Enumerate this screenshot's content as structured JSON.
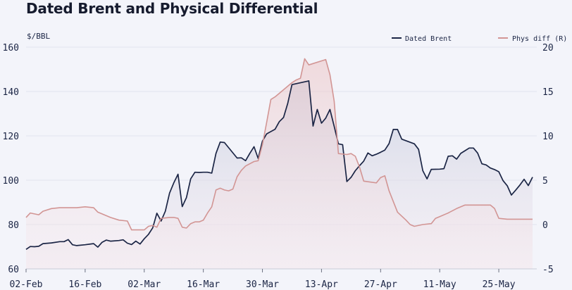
{
  "chart_data": {
    "type": "line",
    "title": "Dated Brent and Physical Differential",
    "y_left_unit": "$/BBL",
    "y_right_unit": "",
    "ylim_left": [
      60,
      160
    ],
    "ylim_right": [
      -5,
      20
    ],
    "yticks_left": [
      "60",
      "80",
      "100",
      "120",
      "140",
      "160"
    ],
    "yticks_right": [
      "-5",
      "0",
      "5",
      "10",
      "15",
      "20"
    ],
    "x_range": [
      "2022-02-02",
      "2022-06-03"
    ],
    "xticks": [
      {
        "date": "2022-02-02",
        "label": "02-Feb"
      },
      {
        "date": "2022-02-16",
        "label": "16-Feb"
      },
      {
        "date": "2022-03-02",
        "label": "02-Mar"
      },
      {
        "date": "2022-03-16",
        "label": "16-Mar"
      },
      {
        "date": "2022-03-30",
        "label": "30-Mar"
      },
      {
        "date": "2022-04-13",
        "label": "13-Apr"
      },
      {
        "date": "2022-04-27",
        "label": "27-Apr"
      },
      {
        "date": "2022-05-11",
        "label": "11-May"
      },
      {
        "date": "2022-05-25",
        "label": "25-May"
      }
    ],
    "grid": true,
    "legend_position": "top-right",
    "series": [
      {
        "name": "Dated Brent",
        "axis": "left",
        "color": "#1b2545",
        "points": [
          [
            "2022-02-02",
            68.8
          ],
          [
            "2022-02-03",
            70.1
          ],
          [
            "2022-02-04",
            70.0
          ],
          [
            "2022-02-05",
            70.2
          ],
          [
            "2022-02-06",
            71.4
          ],
          [
            "2022-02-08",
            71.7
          ],
          [
            "2022-02-10",
            72.3
          ],
          [
            "2022-02-11",
            72.3
          ],
          [
            "2022-02-12",
            73.2
          ],
          [
            "2022-02-13",
            70.9
          ],
          [
            "2022-02-14",
            70.5
          ],
          [
            "2022-02-16",
            70.9
          ],
          [
            "2022-02-18",
            71.4
          ],
          [
            "2022-02-19",
            69.8
          ],
          [
            "2022-02-20",
            72.0
          ],
          [
            "2022-02-21",
            73.0
          ],
          [
            "2022-02-22",
            72.5
          ],
          [
            "2022-02-24",
            72.8
          ],
          [
            "2022-02-25",
            73.1
          ],
          [
            "2022-02-26",
            71.6
          ],
          [
            "2022-02-27",
            71.0
          ],
          [
            "2022-02-28",
            72.5
          ],
          [
            "2022-03-01",
            71.2
          ],
          [
            "2022-03-02",
            73.6
          ],
          [
            "2022-03-03",
            75.6
          ],
          [
            "2022-03-04",
            78.5
          ],
          [
            "2022-03-05",
            85.1
          ],
          [
            "2022-03-06",
            81.6
          ],
          [
            "2022-03-07",
            86.0
          ],
          [
            "2022-03-08",
            94.2
          ],
          [
            "2022-03-09",
            98.8
          ],
          [
            "2022-03-10",
            102.7
          ],
          [
            "2022-03-11",
            88.1
          ],
          [
            "2022-03-12",
            92.2
          ],
          [
            "2022-03-13",
            100.6
          ],
          [
            "2022-03-14",
            103.6
          ],
          [
            "2022-03-15",
            103.5
          ],
          [
            "2022-03-16",
            103.6
          ],
          [
            "2022-03-17",
            103.6
          ],
          [
            "2022-03-18",
            103.2
          ],
          [
            "2022-03-19",
            112.1
          ],
          [
            "2022-03-20",
            117.2
          ],
          [
            "2022-03-21",
            117.0
          ],
          [
            "2022-03-24",
            110.0
          ],
          [
            "2022-03-25",
            110.1
          ],
          [
            "2022-03-26",
            108.8
          ],
          [
            "2022-03-27",
            112.1
          ],
          [
            "2022-03-28",
            115.1
          ],
          [
            "2022-03-29",
            109.8
          ],
          [
            "2022-03-30",
            117.6
          ],
          [
            "2022-03-31",
            120.9
          ],
          [
            "2022-04-02",
            123.0
          ],
          [
            "2022-04-03",
            126.4
          ],
          [
            "2022-04-04",
            128.3
          ],
          [
            "2022-04-05",
            134.7
          ],
          [
            "2022-04-06",
            143.1
          ],
          [
            "2022-04-10",
            144.8
          ],
          [
            "2022-04-11",
            124.4
          ],
          [
            "2022-04-12",
            131.9
          ],
          [
            "2022-04-13",
            125.7
          ],
          [
            "2022-04-14",
            128.0
          ],
          [
            "2022-04-15",
            131.9
          ],
          [
            "2022-04-16",
            124.3
          ],
          [
            "2022-04-17",
            116.4
          ],
          [
            "2022-04-18",
            116.0
          ],
          [
            "2022-04-19",
            99.4
          ],
          [
            "2022-04-20",
            101.3
          ],
          [
            "2022-04-21",
            104.3
          ],
          [
            "2022-04-22",
            106.5
          ],
          [
            "2022-04-23",
            108.6
          ],
          [
            "2022-04-24",
            112.3
          ],
          [
            "2022-04-25",
            111.0
          ],
          [
            "2022-04-26",
            111.7
          ],
          [
            "2022-04-27",
            112.6
          ],
          [
            "2022-04-28",
            113.6
          ],
          [
            "2022-04-29",
            116.5
          ],
          [
            "2022-04-30",
            122.9
          ],
          [
            "2022-05-01",
            122.9
          ],
          [
            "2022-05-02",
            118.5
          ],
          [
            "2022-05-05",
            116.4
          ],
          [
            "2022-05-06",
            113.9
          ],
          [
            "2022-05-07",
            104.3
          ],
          [
            "2022-05-08",
            100.6
          ],
          [
            "2022-05-09",
            104.9
          ],
          [
            "2022-05-11",
            105.0
          ],
          [
            "2022-05-12",
            105.2
          ],
          [
            "2022-05-13",
            110.8
          ],
          [
            "2022-05-14",
            111.0
          ],
          [
            "2022-05-15",
            109.5
          ],
          [
            "2022-05-16",
            112.1
          ],
          [
            "2022-05-17",
            113.3
          ],
          [
            "2022-05-18",
            114.5
          ],
          [
            "2022-05-19",
            114.5
          ],
          [
            "2022-05-20",
            112.2
          ],
          [
            "2022-05-21",
            107.4
          ],
          [
            "2022-05-22",
            106.9
          ],
          [
            "2022-05-23",
            105.5
          ],
          [
            "2022-05-24",
            104.8
          ],
          [
            "2022-05-25",
            103.8
          ],
          [
            "2022-05-26",
            99.8
          ],
          [
            "2022-05-27",
            97.5
          ],
          [
            "2022-05-28",
            93.3
          ],
          [
            "2022-05-29",
            95.5
          ],
          [
            "2022-05-30",
            97.8
          ],
          [
            "2022-05-31",
            100.4
          ],
          [
            "2022-06-01",
            97.6
          ],
          [
            "2022-06-02",
            101.4
          ]
        ]
      },
      {
        "name": "Phys diff (R)",
        "axis": "right",
        "color": "#d29594",
        "points": [
          [
            "2022-02-02",
            0.8
          ],
          [
            "2022-02-03",
            1.3
          ],
          [
            "2022-02-04",
            1.2
          ],
          [
            "2022-02-05",
            1.1
          ],
          [
            "2022-02-06",
            1.5
          ],
          [
            "2022-02-08",
            1.8
          ],
          [
            "2022-02-10",
            1.9
          ],
          [
            "2022-02-11",
            1.9
          ],
          [
            "2022-02-14",
            1.9
          ],
          [
            "2022-02-16",
            2.0
          ],
          [
            "2022-02-18",
            1.9
          ],
          [
            "2022-02-19",
            1.4
          ],
          [
            "2022-02-20",
            1.2
          ],
          [
            "2022-02-22",
            0.8
          ],
          [
            "2022-02-24",
            0.5
          ],
          [
            "2022-02-26",
            0.4
          ],
          [
            "2022-02-27",
            -0.6
          ],
          [
            "2022-02-28",
            -0.6
          ],
          [
            "2022-03-01",
            -0.6
          ],
          [
            "2022-03-02",
            -0.6
          ],
          [
            "2022-03-03",
            -0.2
          ],
          [
            "2022-03-04",
            -0.1
          ],
          [
            "2022-03-05",
            -0.3
          ],
          [
            "2022-03-06",
            0.7
          ],
          [
            "2022-03-08",
            0.8
          ],
          [
            "2022-03-09",
            0.8
          ],
          [
            "2022-03-10",
            0.7
          ],
          [
            "2022-03-11",
            -0.3
          ],
          [
            "2022-03-12",
            -0.4
          ],
          [
            "2022-03-13",
            0.1
          ],
          [
            "2022-03-14",
            0.3
          ],
          [
            "2022-03-15",
            0.3
          ],
          [
            "2022-03-16",
            0.5
          ],
          [
            "2022-03-17",
            1.3
          ],
          [
            "2022-03-18",
            2.0
          ],
          [
            "2022-03-19",
            3.9
          ],
          [
            "2022-03-20",
            4.1
          ],
          [
            "2022-03-21",
            3.9
          ],
          [
            "2022-03-22",
            3.8
          ],
          [
            "2022-03-23",
            4.0
          ],
          [
            "2022-03-24",
            5.4
          ],
          [
            "2022-03-25",
            6.1
          ],
          [
            "2022-03-26",
            6.6
          ],
          [
            "2022-03-28",
            7.1
          ],
          [
            "2022-03-29",
            7.2
          ],
          [
            "2022-03-30",
            9.0
          ],
          [
            "2022-03-31",
            11.5
          ],
          [
            "2022-04-01",
            14.1
          ],
          [
            "2022-04-02",
            14.4
          ],
          [
            "2022-04-04",
            15.2
          ],
          [
            "2022-04-06",
            16.0
          ],
          [
            "2022-04-07",
            16.3
          ],
          [
            "2022-04-08",
            16.5
          ],
          [
            "2022-04-09",
            18.7
          ],
          [
            "2022-04-10",
            18.0
          ],
          [
            "2022-04-14",
            18.6
          ],
          [
            "2022-04-15",
            16.9
          ],
          [
            "2022-04-16",
            13.9
          ],
          [
            "2022-04-17",
            8.0
          ],
          [
            "2022-04-19",
            7.9
          ],
          [
            "2022-04-20",
            8.0
          ],
          [
            "2022-04-21",
            7.7
          ],
          [
            "2022-04-22",
            6.5
          ],
          [
            "2022-04-23",
            4.9
          ],
          [
            "2022-04-26",
            4.7
          ],
          [
            "2022-04-27",
            5.3
          ],
          [
            "2022-04-28",
            5.5
          ],
          [
            "2022-04-29",
            3.8
          ],
          [
            "2022-05-01",
            1.4
          ],
          [
            "2022-05-03",
            0.5
          ],
          [
            "2022-05-04",
            0.0
          ],
          [
            "2022-05-05",
            -0.2
          ],
          [
            "2022-05-07",
            0.0
          ],
          [
            "2022-05-09",
            0.1
          ],
          [
            "2022-05-10",
            0.7
          ],
          [
            "2022-05-11",
            0.9
          ],
          [
            "2022-05-13",
            1.3
          ],
          [
            "2022-05-15",
            1.8
          ],
          [
            "2022-05-17",
            2.2
          ],
          [
            "2022-05-19",
            2.2
          ],
          [
            "2022-05-21",
            2.2
          ],
          [
            "2022-05-23",
            2.2
          ],
          [
            "2022-05-24",
            1.8
          ],
          [
            "2022-05-25",
            0.7
          ],
          [
            "2022-05-27",
            0.6
          ],
          [
            "2022-05-29",
            0.6
          ],
          [
            "2022-06-01",
            0.6
          ],
          [
            "2022-06-02",
            0.6
          ]
        ]
      }
    ]
  }
}
